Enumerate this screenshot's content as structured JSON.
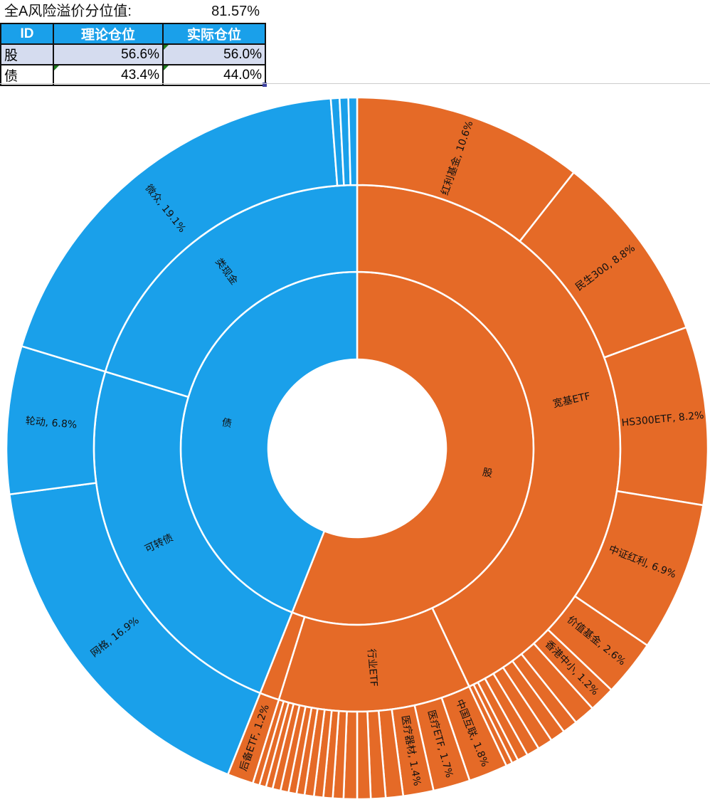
{
  "sheet": {
    "risk_label": "全A风险溢价分位值:",
    "risk_value": "81.57%",
    "table": {
      "headers": [
        "ID",
        "理论仓位",
        "实际仓位"
      ],
      "rows": [
        {
          "id": "股",
          "theory": "56.6%",
          "actual": "56.0%"
        },
        {
          "id": "债",
          "theory": "43.4%",
          "actual": "44.0%"
        }
      ]
    }
  },
  "chart_data": {
    "type": "sunburst",
    "colors": {
      "股": "#E56A27",
      "债": "#1AA0EA"
    },
    "data": [
      {
        "name": "股",
        "children": [
          {
            "name": "宽基ETF",
            "children": [
              {
                "label": "红利基金, 10.6%",
                "value": 10.6
              },
              {
                "label": "民生300, 8.8%",
                "value": 8.8
              },
              {
                "label": "HS300ETF, 8.2%",
                "value": 8.2
              },
              {
                "label": "中证红利, 6.9%",
                "value": 6.9
              },
              {
                "label": "价值基金, 2.6%",
                "value": 2.6
              },
              {
                "label": "香港中小, 1.2%",
                "value": 1.2
              },
              {
                "value": 0.98
              },
              {
                "value": 0.69
              },
              {
                "value": 0.69
              },
              {
                "value": 0.69
              },
              {
                "value": 0.59
              },
              {
                "value": 0.49
              },
              {
                "value": 0.29
              },
              {
                "value": 0.29
              }
            ]
          },
          {
            "name": "行业ETF",
            "children": [
              {
                "label": "中国互联, 1.8%",
                "value": 1.8
              },
              {
                "label": "医疗ETF, 1.7%",
                "value": 1.7
              },
              {
                "label": "医疗器材, 1.4%",
                "value": 1.4
              },
              {
                "value": 0.8
              },
              {
                "value": 0.68
              },
              {
                "value": 0.62
              },
              {
                "value": 0.62
              },
              {
                "value": 0.49
              },
              {
                "value": 0.43
              },
              {
                "value": 0.43
              },
              {
                "value": 0.43
              },
              {
                "value": 0.37
              },
              {
                "value": 0.37
              },
              {
                "value": 0.37
              },
              {
                "value": 0.37
              },
              {
                "value": 0.31
              },
              {
                "value": 0.31
              },
              {
                "value": 0.31
              }
            ]
          },
          {
            "name": "",
            "children": [
              {
                "label": "后备ETF, 1.2%",
                "value": 1.2
              }
            ]
          }
        ]
      },
      {
        "name": "债",
        "children": [
          {
            "name": "可转债",
            "children": [
              {
                "label": "网格, 16.9%",
                "value": 16.9
              },
              {
                "label": "轮动, 6.8%",
                "value": 6.8
              }
            ]
          },
          {
            "name": "类现金",
            "children": [
              {
                "label": "微众, 19.1%",
                "value": 19.1
              },
              {
                "value": 0.4
              },
              {
                "value": 0.4
              },
              {
                "value": 0.4
              }
            ]
          }
        ]
      }
    ]
  }
}
